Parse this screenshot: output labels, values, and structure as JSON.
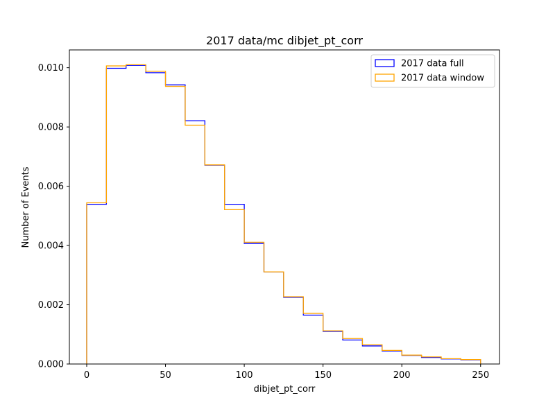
{
  "chart_data": {
    "type": "step",
    "title": "2017 data/mc dibjet_pt_corr",
    "xlabel": "dibjet_pt_corr",
    "ylabel": "Number of Events",
    "xlim": [
      -11,
      262
    ],
    "ylim": [
      0,
      0.0106
    ],
    "xticks": [
      {
        "value": 0,
        "label": "0"
      },
      {
        "value": 50,
        "label": "50"
      },
      {
        "value": 100,
        "label": "100"
      },
      {
        "value": 150,
        "label": "150"
      },
      {
        "value": 200,
        "label": "200"
      },
      {
        "value": 250,
        "label": "250"
      }
    ],
    "yticks": [
      {
        "value": 0,
        "label": "0.000"
      },
      {
        "value": 0.002,
        "label": "0.002"
      },
      {
        "value": 0.004,
        "label": "0.004"
      },
      {
        "value": 0.006,
        "label": "0.006"
      },
      {
        "value": 0.008,
        "label": "0.008"
      },
      {
        "value": 0.01,
        "label": "0.010"
      }
    ],
    "bin_edges": [
      0,
      12.5,
      25,
      37.5,
      50,
      62.5,
      75,
      87.5,
      100,
      112.5,
      125,
      137.5,
      150,
      162.5,
      175,
      187.5,
      200,
      212.5,
      225,
      237.5,
      250
    ],
    "series": [
      {
        "name": "2017 data full",
        "color": "#0000ff",
        "values": [
          0.00539,
          0.00998,
          0.01008,
          0.00983,
          0.00942,
          0.00821,
          0.00671,
          0.00539,
          0.00407,
          0.00311,
          0.00225,
          0.00165,
          0.0011,
          0.00081,
          0.00061,
          0.00044,
          0.00029,
          0.00022,
          0.00017,
          0.00014
        ]
      },
      {
        "name": "2017 data window",
        "color": "#ffa500",
        "values": [
          0.00544,
          0.01006,
          0.0101,
          0.00988,
          0.00937,
          0.00806,
          0.00672,
          0.00521,
          0.00411,
          0.00311,
          0.00227,
          0.00171,
          0.00112,
          0.00086,
          0.00065,
          0.00046,
          0.0003,
          0.00024,
          0.00018,
          0.00015
        ]
      }
    ],
    "legend_position": "top-right",
    "grid": false
  }
}
